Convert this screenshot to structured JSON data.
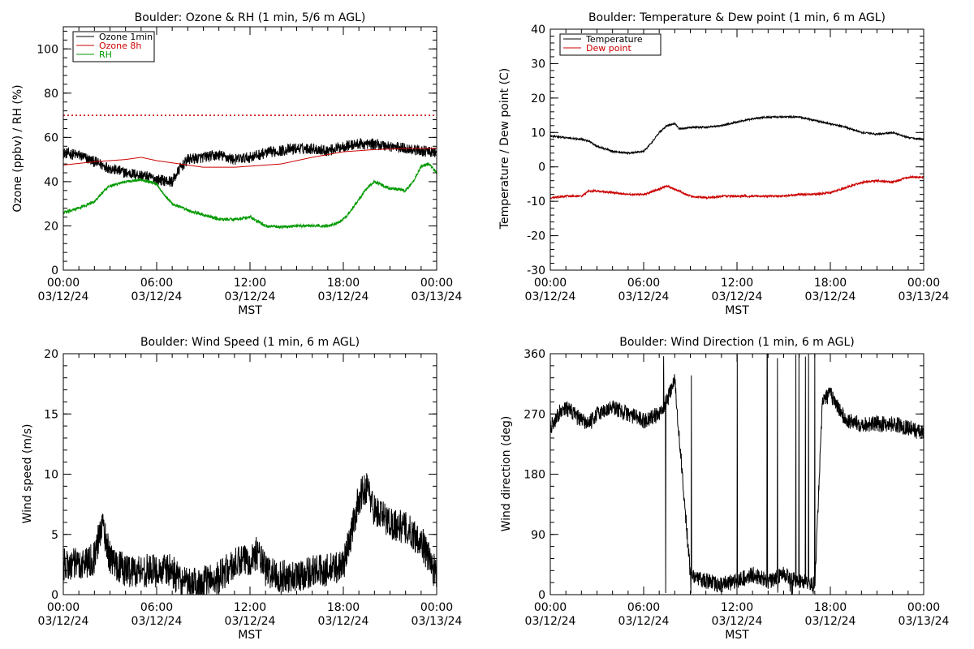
{
  "chart_data": [
    {
      "id": "ozone_rh",
      "type": "line",
      "title": "Boulder: Ozone & RH (1 min, 5/6 m AGL)",
      "ylabel": "Ozone (ppbv) / RH (%)",
      "xlabel": "MST",
      "x_range_hours": [
        0,
        24
      ],
      "ylim": [
        0,
        110
      ],
      "yticks": [
        0,
        20,
        40,
        60,
        80,
        100
      ],
      "xticks": [
        {
          "h": 0,
          "time": "00:00",
          "date": "03/12/24"
        },
        {
          "h": 6,
          "time": "06:00",
          "date": "03/12/24"
        },
        {
          "h": 12,
          "time": "12:00",
          "date": "03/12/24"
        },
        {
          "h": 18,
          "time": "18:00",
          "date": "03/12/24"
        },
        {
          "h": 24,
          "time": "00:00",
          "date": "03/13/24"
        }
      ],
      "reference_line": {
        "y": 70,
        "color": "#cc0000",
        "style": "dotted"
      },
      "series": [
        {
          "name": "Ozone 1min",
          "color": "#000000",
          "noise": 2.5,
          "points": [
            [
              0,
              53
            ],
            [
              1,
              52
            ],
            [
              2,
              49
            ],
            [
              3,
              46
            ],
            [
              4,
              44
            ],
            [
              5,
              43
            ],
            [
              6,
              41
            ],
            [
              7,
              40
            ],
            [
              7.5,
              46
            ],
            [
              8,
              50
            ],
            [
              9,
              51
            ],
            [
              10,
              52
            ],
            [
              11,
              50
            ],
            [
              12,
              51
            ],
            [
              13,
              53
            ],
            [
              14,
              54
            ],
            [
              15,
              55
            ],
            [
              16,
              55
            ],
            [
              17,
              54
            ],
            [
              18,
              56
            ],
            [
              19,
              57
            ],
            [
              20,
              57
            ],
            [
              21,
              56
            ],
            [
              22,
              55
            ],
            [
              23,
              54
            ],
            [
              24,
              53
            ]
          ]
        },
        {
          "name": "Ozone 8h",
          "color": "#cc0000",
          "noise": 0,
          "points": [
            [
              0,
              47.5
            ],
            [
              2,
              49
            ],
            [
              4,
              50
            ],
            [
              5,
              51
            ],
            [
              6,
              49.5
            ],
            [
              8,
              47.5
            ],
            [
              9,
              46.5
            ],
            [
              11,
              46.5
            ],
            [
              12,
              47
            ],
            [
              14,
              48
            ],
            [
              16,
              51
            ],
            [
              18,
              53.5
            ],
            [
              20,
              54.5
            ],
            [
              22,
              55
            ],
            [
              24,
              55
            ]
          ]
        },
        {
          "name": "RH",
          "color": "#009900",
          "noise": 0.7,
          "points": [
            [
              0,
              26
            ],
            [
              1,
              28
            ],
            [
              2,
              31
            ],
            [
              2.5,
              35
            ],
            [
              3,
              38
            ],
            [
              4,
              40
            ],
            [
              5,
              41
            ],
            [
              6,
              39
            ],
            [
              6.5,
              34
            ],
            [
              7,
              30
            ],
            [
              8,
              27
            ],
            [
              9,
              25
            ],
            [
              10,
              23
            ],
            [
              11,
              23
            ],
            [
              12,
              24
            ],
            [
              12.5,
              22
            ],
            [
              13,
              20
            ],
            [
              14,
              19.5
            ],
            [
              15,
              20
            ],
            [
              16,
              20
            ],
            [
              17,
              20
            ],
            [
              17.5,
              21
            ],
            [
              18,
              23
            ],
            [
              18.5,
              27
            ],
            [
              19,
              32
            ],
            [
              19.5,
              37
            ],
            [
              20,
              40
            ],
            [
              21,
              37
            ],
            [
              22,
              36
            ],
            [
              22.5,
              40
            ],
            [
              23,
              47
            ],
            [
              23.5,
              48
            ],
            [
              24,
              44
            ]
          ]
        }
      ],
      "legend": [
        {
          "name": "Ozone 1min",
          "color": "#000000"
        },
        {
          "name": "Ozone 8h",
          "color": "#cc0000"
        },
        {
          "name": "RH",
          "color": "#009900"
        }
      ],
      "legend_position": "top-left"
    },
    {
      "id": "temp_dew",
      "type": "line",
      "title": "Boulder: Temperature & Dew point (1 min, 6 m AGL)",
      "ylabel": "Temperature / Dew point (C)",
      "xlabel": "MST",
      "x_range_hours": [
        0,
        24
      ],
      "ylim": [
        -30,
        40
      ],
      "yticks": [
        -30,
        -20,
        -10,
        0,
        10,
        20,
        30,
        40
      ],
      "xticks": [
        {
          "h": 0,
          "time": "00:00",
          "date": "03/12/24"
        },
        {
          "h": 6,
          "time": "06:00",
          "date": "03/12/24"
        },
        {
          "h": 12,
          "time": "12:00",
          "date": "03/12/24"
        },
        {
          "h": 18,
          "time": "18:00",
          "date": "03/12/24"
        },
        {
          "h": 24,
          "time": "00:00",
          "date": "03/13/24"
        }
      ],
      "series": [
        {
          "name": "Temperature",
          "color": "#000000",
          "noise": 0.25,
          "points": [
            [
              0,
              9
            ],
            [
              1,
              8.5
            ],
            [
              2,
              8
            ],
            [
              2.5,
              7.5
            ],
            [
              3,
              6
            ],
            [
              4,
              4.5
            ],
            [
              5,
              4
            ],
            [
              6,
              4.5
            ],
            [
              6.5,
              7
            ],
            [
              7,
              10
            ],
            [
              7.5,
              12
            ],
            [
              8,
              12.5
            ],
            [
              8.3,
              11
            ],
            [
              9,
              11.5
            ],
            [
              10,
              11.5
            ],
            [
              11,
              12
            ],
            [
              12,
              13
            ],
            [
              13,
              14
            ],
            [
              14,
              14.5
            ],
            [
              15,
              14.5
            ],
            [
              16,
              14.5
            ],
            [
              17,
              13.5
            ],
            [
              18,
              12.5
            ],
            [
              19,
              11.5
            ],
            [
              20,
              10
            ],
            [
              21,
              9.5
            ],
            [
              22,
              10
            ],
            [
              23,
              8.5
            ],
            [
              24,
              8
            ]
          ]
        },
        {
          "name": "Dew point",
          "color": "#cc0000",
          "noise": 0.3,
          "points": [
            [
              0,
              -9
            ],
            [
              1,
              -8.5
            ],
            [
              2,
              -8.5
            ],
            [
              2.5,
              -7
            ],
            [
              3,
              -7
            ],
            [
              4,
              -7.5
            ],
            [
              5,
              -8
            ],
            [
              6,
              -8
            ],
            [
              7,
              -6.5
            ],
            [
              7.5,
              -5.5
            ],
            [
              8,
              -6.5
            ],
            [
              9,
              -8.5
            ],
            [
              10,
              -9
            ],
            [
              11,
              -8.5
            ],
            [
              12,
              -8.5
            ],
            [
              13,
              -8.5
            ],
            [
              14,
              -8.5
            ],
            [
              15,
              -8.5
            ],
            [
              16,
              -8
            ],
            [
              17,
              -8
            ],
            [
              18,
              -7.5
            ],
            [
              19,
              -6
            ],
            [
              20,
              -4.5
            ],
            [
              21,
              -4
            ],
            [
              22,
              -4.5
            ],
            [
              23,
              -3
            ],
            [
              24,
              -3
            ]
          ]
        }
      ],
      "legend": [
        {
          "name": "Temperature",
          "color": "#000000"
        },
        {
          "name": "Dew point",
          "color": "#cc0000"
        }
      ],
      "legend_position": "top-left"
    },
    {
      "id": "wind_speed",
      "type": "line",
      "title": "Boulder: Wind Speed (1 min, 6 m AGL)",
      "ylabel": "Wind speed (m/s)",
      "xlabel": "MST",
      "x_range_hours": [
        0,
        24
      ],
      "ylim": [
        0,
        20
      ],
      "yticks": [
        0,
        5,
        10,
        15,
        20
      ],
      "xticks": [
        {
          "h": 0,
          "time": "00:00",
          "date": "03/12/24"
        },
        {
          "h": 6,
          "time": "06:00",
          "date": "03/12/24"
        },
        {
          "h": 12,
          "time": "12:00",
          "date": "03/12/24"
        },
        {
          "h": 18,
          "time": "18:00",
          "date": "03/12/24"
        },
        {
          "h": 24,
          "time": "00:00",
          "date": "03/13/24"
        }
      ],
      "series": [
        {
          "name": "",
          "color": "#000000",
          "noise": 1.4,
          "floor": 0,
          "points": [
            [
              0,
              2.5
            ],
            [
              1,
              2.5
            ],
            [
              2,
              3
            ],
            [
              2.5,
              6
            ],
            [
              3,
              3
            ],
            [
              4,
              2
            ],
            [
              5,
              2
            ],
            [
              6,
              2
            ],
            [
              7,
              2
            ],
            [
              7.5,
              1
            ],
            [
              8,
              0.8
            ],
            [
              9,
              1
            ],
            [
              10,
              1.5
            ],
            [
              11,
              2.5
            ],
            [
              12,
              3
            ],
            [
              12.5,
              3.5
            ],
            [
              13,
              2
            ],
            [
              14,
              1.5
            ],
            [
              15,
              1.5
            ],
            [
              16,
              2
            ],
            [
              17,
              2
            ],
            [
              18,
              2.5
            ],
            [
              18.5,
              5
            ],
            [
              19,
              8
            ],
            [
              19.5,
              9
            ],
            [
              20,
              7
            ],
            [
              21,
              6
            ],
            [
              22,
              5.5
            ],
            [
              23,
              4.5
            ],
            [
              24,
              1.5
            ]
          ]
        }
      ]
    },
    {
      "id": "wind_dir",
      "type": "line",
      "title": "Boulder: Wind Direction (1 min, 6 m AGL)",
      "ylabel": "Wind direction (deg)",
      "xlabel": "MST",
      "x_range_hours": [
        0,
        24
      ],
      "ylim": [
        0,
        360
      ],
      "yticks": [
        0,
        90,
        180,
        270,
        360
      ],
      "xticks": [
        {
          "h": 0,
          "time": "00:00",
          "date": "03/12/24"
        },
        {
          "h": 6,
          "time": "06:00",
          "date": "03/12/24"
        },
        {
          "h": 12,
          "time": "12:00",
          "date": "03/12/24"
        },
        {
          "h": 18,
          "time": "18:00",
          "date": "03/12/24"
        },
        {
          "h": 24,
          "time": "00:00",
          "date": "03/13/24"
        }
      ],
      "series": [
        {
          "name": "",
          "color": "#000000",
          "noise": 12,
          "floor": 0,
          "ceil": 360,
          "wrap_window": [
            7,
            17.5
          ],
          "points": [
            [
              0,
              250
            ],
            [
              0.5,
              270
            ],
            [
              1,
              280
            ],
            [
              2,
              260
            ],
            [
              2.5,
              255
            ],
            [
              3,
              270
            ],
            [
              4,
              280
            ],
            [
              5,
              270
            ],
            [
              6,
              260
            ],
            [
              7,
              270
            ],
            [
              7.5,
              290
            ],
            [
              8,
              320
            ],
            [
              9,
              30
            ],
            [
              10,
              20
            ],
            [
              11,
              15
            ],
            [
              12,
              20
            ],
            [
              13,
              30
            ],
            [
              14,
              20
            ],
            [
              15,
              30
            ],
            [
              16,
              20
            ],
            [
              17,
              15
            ],
            [
              17.5,
              290
            ],
            [
              18,
              300
            ],
            [
              19,
              260
            ],
            [
              20,
              255
            ],
            [
              21,
              255
            ],
            [
              22,
              255
            ],
            [
              23,
              250
            ],
            [
              24,
              240
            ]
          ]
        }
      ]
    }
  ]
}
